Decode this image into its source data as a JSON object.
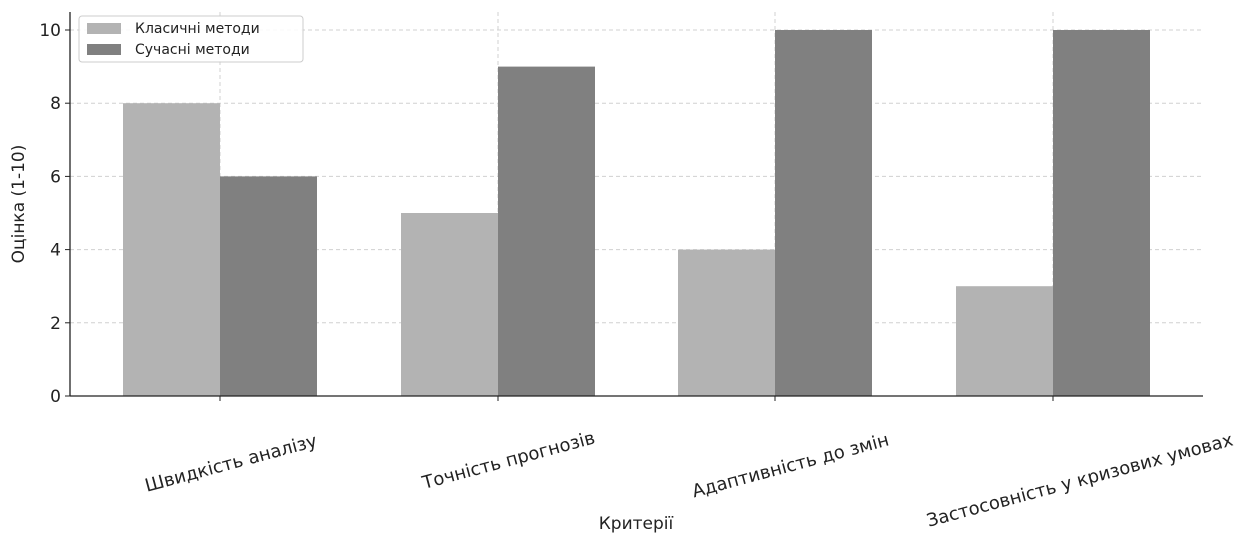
{
  "chart_data": {
    "type": "bar",
    "categories": [
      "Швидкість аналізу",
      "Точність прогнозів",
      "Адаптивність до змін",
      "Застосовність у кризових умовах"
    ],
    "series": [
      {
        "name": "Класичні методи",
        "values": [
          8,
          5,
          4,
          3
        ],
        "color": "#b3b3b3"
      },
      {
        "name": "Сучасні методи",
        "values": [
          6,
          9,
          10,
          10
        ],
        "color": "#808080"
      }
    ],
    "title": "",
    "xlabel": "Критерії",
    "ylabel": "Оцінка (1-10)",
    "ylim": [
      0,
      10.5
    ],
    "yticks": [
      "0",
      "2",
      "4",
      "6",
      "8",
      "10"
    ],
    "grid": true,
    "legend_position": "top-left"
  }
}
